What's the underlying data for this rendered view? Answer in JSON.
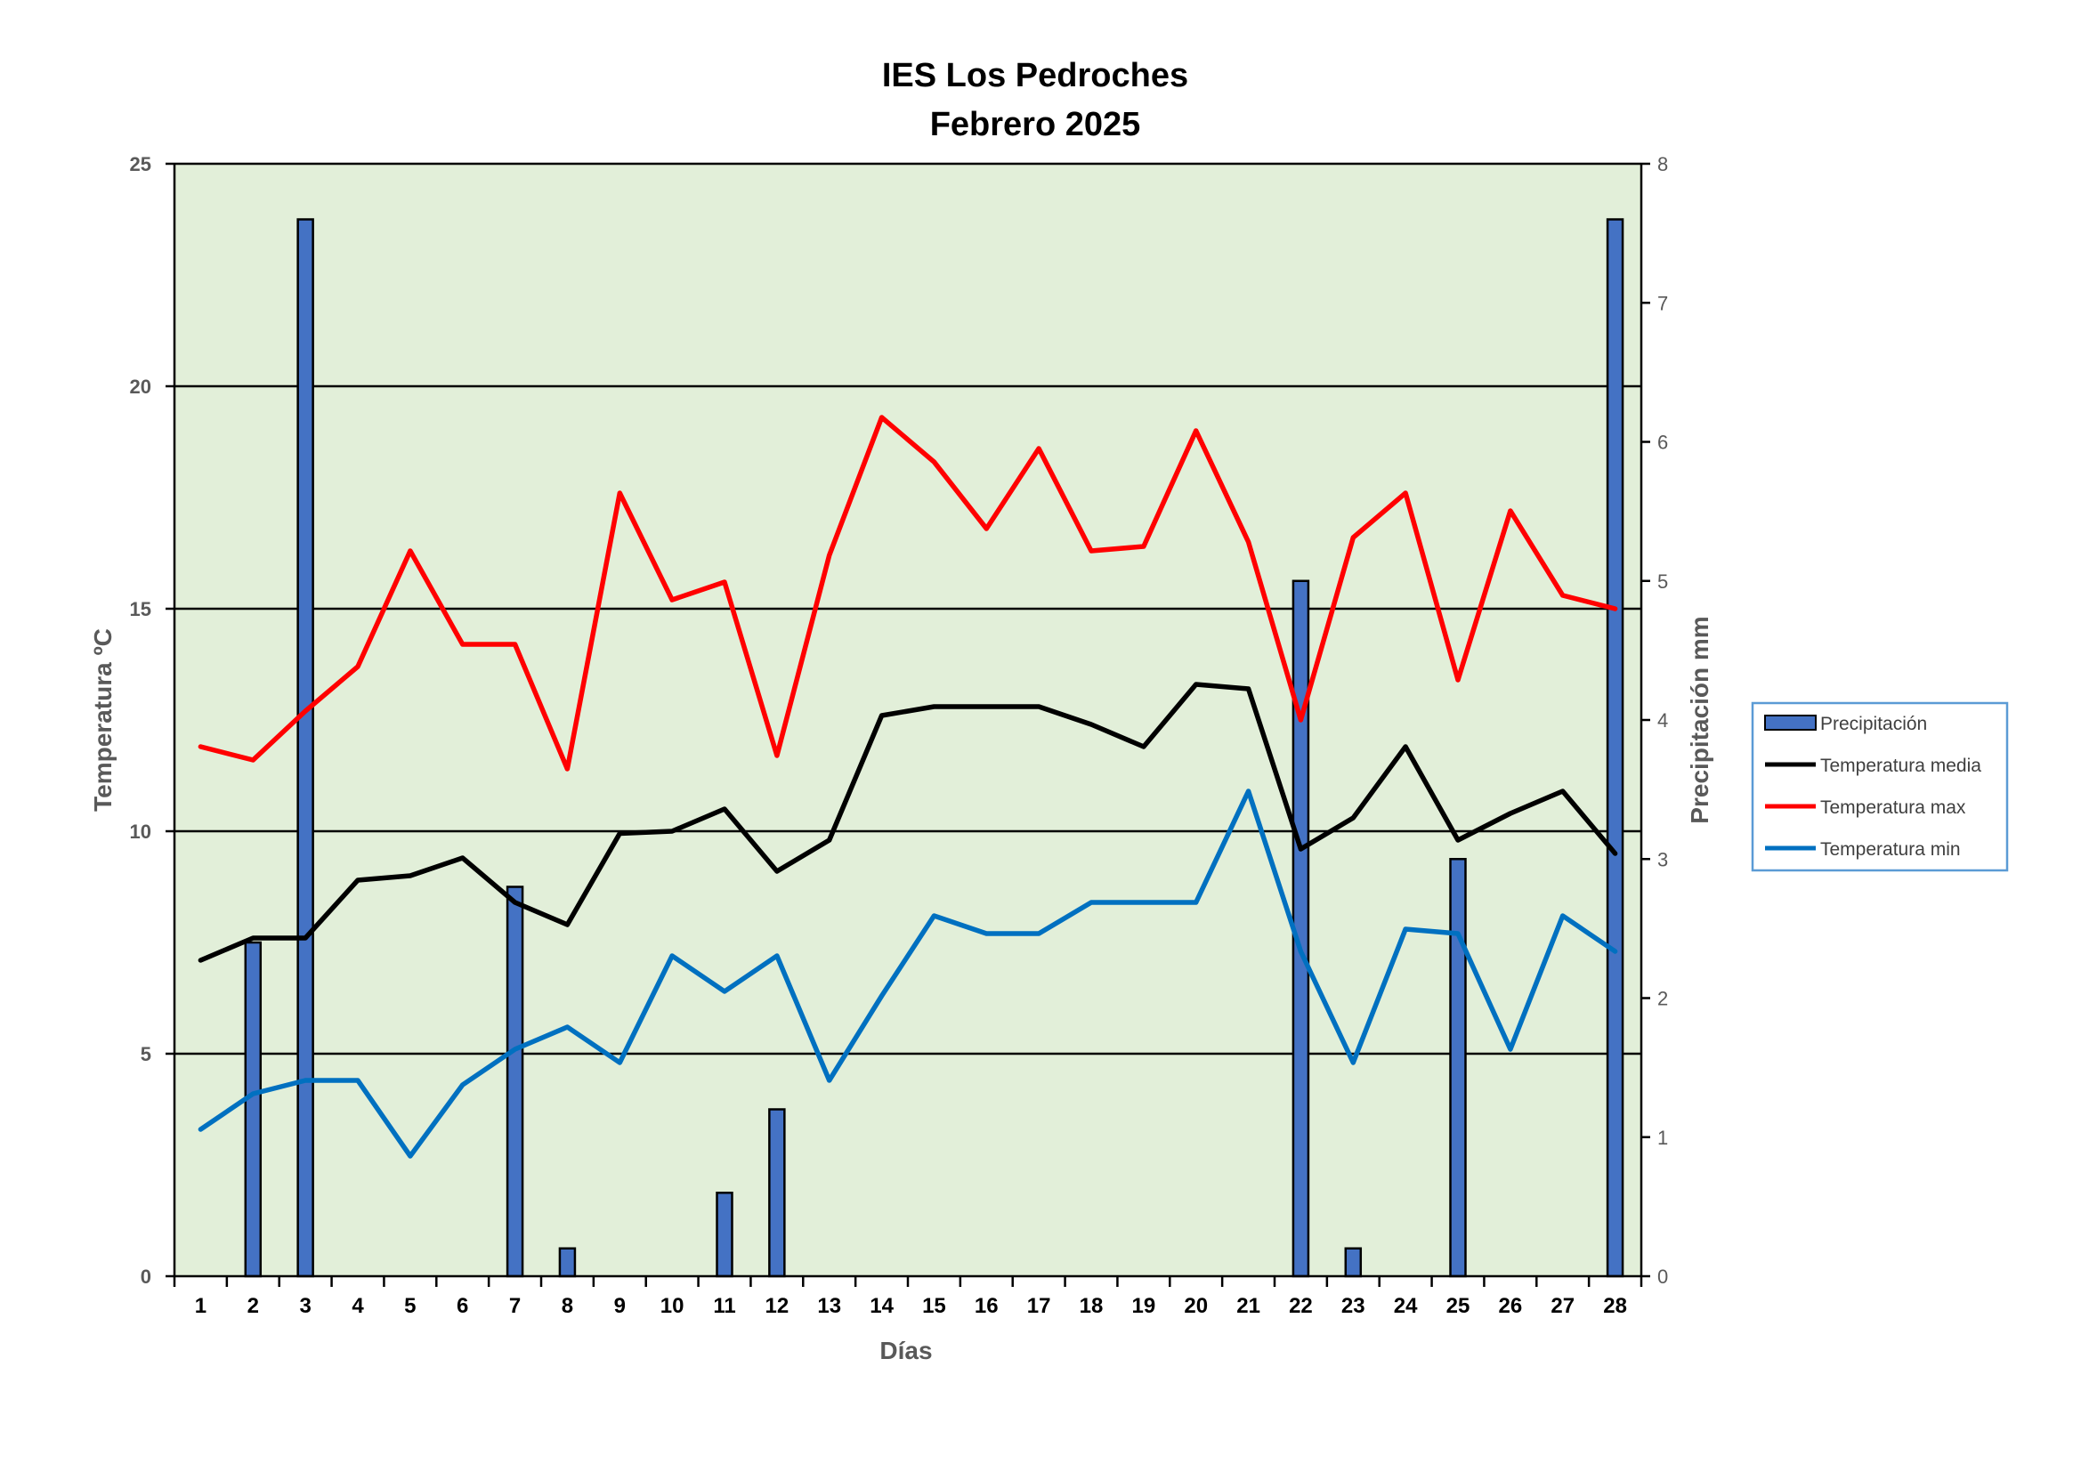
{
  "chart_data": {
    "type": "bar+line",
    "title": [
      "IES Los Pedroches",
      "Febrero 2025"
    ],
    "xlabel": "Días",
    "ylabel_left": "Temperatura ºC",
    "ylabel_right": "Precipitación mm",
    "categories": [
      "1",
      "2",
      "3",
      "4",
      "5",
      "6",
      "7",
      "8",
      "9",
      "10",
      "11",
      "12",
      "13",
      "14",
      "15",
      "16",
      "17",
      "18",
      "19",
      "20",
      "21",
      "22",
      "23",
      "24",
      "25",
      "26",
      "27",
      "28"
    ],
    "ylim_left": [
      0,
      25
    ],
    "yticks_left": [
      "0",
      "5",
      "10",
      "15",
      "20",
      "25"
    ],
    "ylim_right": [
      0,
      8
    ],
    "yticks_right": [
      "0",
      "1",
      "2",
      "3",
      "4",
      "5",
      "6",
      "7",
      "8"
    ],
    "background": "#e2efd9",
    "grid": true,
    "legend_position": "right",
    "bars": {
      "name": "Precipitación",
      "axis": "right",
      "color": "#4472c4",
      "values": [
        0,
        2.4,
        7.6,
        0,
        0,
        0,
        2.8,
        0.2,
        0,
        0,
        0.6,
        1.2,
        0,
        0,
        0,
        0,
        0,
        0,
        0,
        0,
        0,
        5.0,
        0.2,
        0,
        3.0,
        0,
        0,
        7.6
      ]
    },
    "series": [
      {
        "name": "Temperatura media",
        "axis": "left",
        "color": "#000000",
        "values": [
          7.1,
          7.6,
          7.6,
          8.9,
          9.0,
          9.4,
          8.4,
          7.9,
          9.95,
          10.0,
          10.5,
          9.1,
          9.8,
          12.6,
          12.8,
          12.8,
          12.8,
          12.4,
          11.9,
          13.3,
          13.2,
          9.6,
          10.3,
          11.9,
          9.8,
          10.4,
          10.9,
          9.5
        ]
      },
      {
        "name": "Temperatura max",
        "axis": "left",
        "color": "#ff0000",
        "values": [
          11.9,
          11.6,
          12.7,
          13.7,
          16.3,
          14.2,
          14.2,
          11.4,
          17.6,
          15.2,
          15.6,
          11.7,
          16.2,
          19.3,
          18.3,
          16.8,
          18.6,
          16.3,
          16.4,
          19.0,
          16.5,
          12.5,
          16.6,
          17.6,
          13.4,
          17.2,
          15.3,
          15.0
        ]
      },
      {
        "name": "Temperatura min",
        "axis": "left",
        "color": "#0070c0",
        "values": [
          3.3,
          4.1,
          4.4,
          4.4,
          2.7,
          4.3,
          5.1,
          5.6,
          4.8,
          7.2,
          6.4,
          7.2,
          4.4,
          6.3,
          8.1,
          7.7,
          7.7,
          8.4,
          8.4,
          8.4,
          10.9,
          7.3,
          4.8,
          7.8,
          7.7,
          5.1,
          8.1,
          7.3
        ]
      }
    ]
  }
}
